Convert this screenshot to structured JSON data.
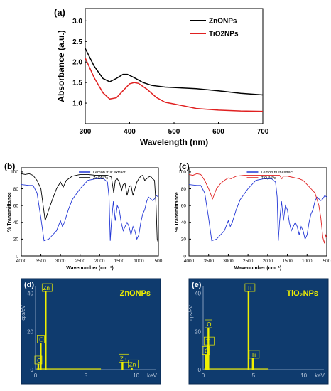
{
  "chart_data": [
    {
      "type": "line",
      "panel_label": "(a)",
      "xlabel": "Wavelength (nm)",
      "ylabel": "Absorbance (a.u.)",
      "xlim": [
        300,
        700
      ],
      "ylim": [
        0.5,
        3.3
      ],
      "xticks": [
        "300",
        "400",
        "500",
        "600",
        "700"
      ],
      "yticks": [
        "1.0",
        "1.5",
        "2.0",
        "2.5",
        "3.0"
      ],
      "legend_position": "top-right",
      "series": [
        {
          "name": "ZnONPs",
          "color": "#000000",
          "x": [
            300,
            320,
            340,
            355,
            370,
            385,
            395,
            410,
            430,
            450,
            480,
            500,
            550,
            600,
            650,
            700
          ],
          "y": [
            2.33,
            1.9,
            1.6,
            1.52,
            1.6,
            1.7,
            1.7,
            1.62,
            1.5,
            1.43,
            1.39,
            1.38,
            1.35,
            1.3,
            1.24,
            1.2
          ]
        },
        {
          "name": "TiO2NPs",
          "color": "#e02020",
          "x": [
            300,
            320,
            340,
            355,
            370,
            385,
            400,
            410,
            420,
            440,
            460,
            480,
            500,
            550,
            600,
            650,
            700
          ],
          "y": [
            2.1,
            1.62,
            1.25,
            1.1,
            1.13,
            1.3,
            1.47,
            1.5,
            1.48,
            1.33,
            1.14,
            1.02,
            0.98,
            0.87,
            0.83,
            0.81,
            0.8
          ]
        }
      ]
    },
    {
      "type": "line",
      "panel_label": "(b)",
      "xlabel": "Wavenumber (cm⁻¹)",
      "ylabel": "% Transmittance",
      "xlim": [
        4000,
        500
      ],
      "xreversed": true,
      "ylim": [
        0,
        105
      ],
      "xticks": [
        "4000",
        "3500",
        "3000",
        "2500",
        "2000",
        "1500",
        "1000",
        "500"
      ],
      "yticks": [
        "0",
        "20",
        "40",
        "60",
        "80",
        "100"
      ],
      "legend_position": "top-right",
      "series": [
        {
          "name": "Lemon fruit extract",
          "color": "#2236d6",
          "x": [
            4000,
            3800,
            3700,
            3600,
            3500,
            3420,
            3300,
            3200,
            3100,
            3000,
            2950,
            2900,
            2800,
            2700,
            2500,
            2300,
            2100,
            2000,
            1900,
            1800,
            1760,
            1730,
            1700,
            1650,
            1600,
            1550,
            1500,
            1450,
            1400,
            1350,
            1300,
            1250,
            1200,
            1150,
            1100,
            1050,
            1000,
            950,
            900,
            850,
            800,
            750,
            700,
            650,
            600,
            550,
            500
          ],
          "y": [
            85,
            84,
            84,
            75,
            45,
            18,
            20,
            25,
            30,
            42,
            35,
            40,
            55,
            67,
            80,
            90,
            92,
            92,
            92,
            88,
            70,
            18,
            40,
            65,
            42,
            60,
            55,
            40,
            30,
            35,
            40,
            35,
            25,
            35,
            30,
            20,
            25,
            40,
            50,
            55,
            65,
            70,
            68,
            66,
            68,
            72,
            70
          ]
        },
        {
          "name": "ZnONPs",
          "color": "#000000",
          "x": [
            4000,
            3900,
            3800,
            3700,
            3600,
            3500,
            3390,
            3300,
            3200,
            3100,
            3000,
            2930,
            2850,
            2700,
            2500,
            2300,
            2100,
            2000,
            1900,
            1800,
            1700,
            1640,
            1600,
            1550,
            1500,
            1440,
            1400,
            1350,
            1300,
            1250,
            1200,
            1150,
            1100,
            1050,
            1000,
            950,
            900,
            850,
            800,
            750,
            700,
            650,
            600,
            560,
            530,
            500
          ],
          "y": [
            98,
            97,
            98,
            96,
            90,
            80,
            42,
            55,
            68,
            80,
            88,
            82,
            90,
            95,
            97,
            97,
            96,
            96,
            96,
            96,
            94,
            75,
            90,
            92,
            88,
            78,
            85,
            86,
            72,
            82,
            84,
            72,
            80,
            88,
            92,
            95,
            96,
            90,
            92,
            94,
            95,
            92,
            90,
            60,
            20,
            15
          ]
        }
      ]
    },
    {
      "type": "line",
      "panel_label": "(c)",
      "xlabel": "Wavenumber (cm⁻¹)",
      "ylabel": "% Transmittance",
      "xlim": [
        4000,
        500
      ],
      "xreversed": true,
      "ylim": [
        0,
        105
      ],
      "xticks": [
        "4000",
        "3500",
        "3000",
        "2500",
        "2000",
        "1500",
        "1000",
        "500"
      ],
      "yticks": [
        "0",
        "20",
        "40",
        "60",
        "80",
        "100"
      ],
      "legend_position": "top-right",
      "series": [
        {
          "name": "Lemon fruit extract",
          "color": "#2236d6",
          "x": [
            4000,
            3800,
            3700,
            3600,
            3500,
            3420,
            3300,
            3200,
            3100,
            3000,
            2950,
            2900,
            2800,
            2700,
            2500,
            2300,
            2100,
            2000,
            1900,
            1800,
            1760,
            1730,
            1700,
            1650,
            1600,
            1550,
            1500,
            1450,
            1400,
            1350,
            1300,
            1250,
            1200,
            1150,
            1100,
            1050,
            1000,
            950,
            900,
            850,
            800,
            750,
            700,
            650,
            600,
            550,
            500
          ],
          "y": [
            85,
            84,
            84,
            75,
            45,
            18,
            20,
            25,
            30,
            42,
            35,
            40,
            55,
            67,
            80,
            90,
            92,
            92,
            92,
            88,
            70,
            18,
            40,
            65,
            42,
            60,
            55,
            40,
            30,
            35,
            40,
            35,
            25,
            35,
            30,
            20,
            25,
            40,
            50,
            55,
            65,
            70,
            68,
            66,
            68,
            72,
            70
          ]
        },
        {
          "name": "TiO₂NPs",
          "color": "#e02020",
          "x": [
            4000,
            3900,
            3800,
            3700,
            3600,
            3500,
            3400,
            3300,
            3200,
            3100,
            3000,
            2930,
            2800,
            2600,
            2400,
            2200,
            2000,
            1800,
            1700,
            1640,
            1600,
            1500,
            1400,
            1300,
            1200,
            1100,
            1000,
            900,
            800,
            700,
            650,
            600,
            560,
            530,
            500
          ],
          "y": [
            97,
            96,
            98,
            97,
            90,
            80,
            68,
            80,
            86,
            90,
            93,
            92,
            95,
            96,
            96,
            96,
            96,
            96,
            96,
            92,
            95,
            95,
            94,
            93,
            92,
            90,
            85,
            80,
            75,
            60,
            45,
            22,
            15,
            25,
            22
          ]
        }
      ]
    },
    {
      "type": "bar",
      "panel_label": "(d)",
      "title": "ZnONPs",
      "xlabel": "keV",
      "ylabel": "cps/eV",
      "xlim": [
        0,
        12
      ],
      "ylim": [
        0,
        44
      ],
      "xticks": [
        "0",
        "5",
        "10"
      ],
      "yticks": [
        "0",
        "20",
        "40"
      ],
      "peaks": [
        {
          "element": "C",
          "energy": 0.28,
          "value": 3
        },
        {
          "element": "O",
          "energy": 0.52,
          "value": 14
        },
        {
          "element": "Zn",
          "energy": 1.01,
          "value": 41
        },
        {
          "element": "Zn",
          "energy": 8.64,
          "value": 4
        },
        {
          "element": "Zn",
          "energy": 9.57,
          "value": 1
        }
      ]
    },
    {
      "type": "bar",
      "panel_label": "(e)",
      "title": "TiO₂NPs",
      "xlabel": "keV",
      "ylabel": "cps/eV",
      "xlim": [
        0,
        12
      ],
      "ylim": [
        0,
        44
      ],
      "xticks": [
        "0",
        "5",
        "10"
      ],
      "yticks": [
        "0",
        "20",
        "40"
      ],
      "peaks": [
        {
          "element": "C",
          "energy": 0.28,
          "value": 8
        },
        {
          "element": "O",
          "energy": 0.52,
          "value": 22
        },
        {
          "element": "Ti",
          "energy": 0.45,
          "value": 13
        },
        {
          "element": "Ti",
          "energy": 4.51,
          "value": 41
        },
        {
          "element": "Ti",
          "energy": 4.93,
          "value": 6
        }
      ]
    }
  ]
}
